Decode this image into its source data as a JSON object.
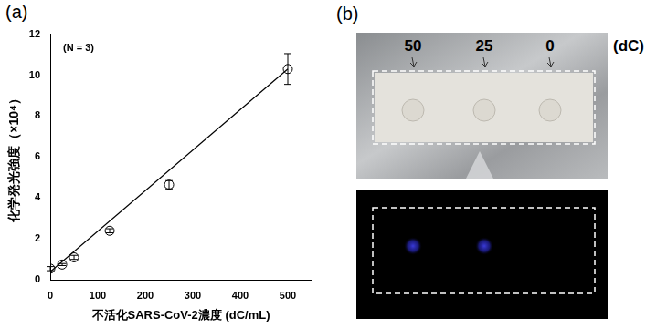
{
  "chart_data": {
    "type": "scatter",
    "panel_label": "(a)",
    "annotation": "(N = 3)",
    "x_label": "不活化SARS-CoV-2濃度 (dC/mL)",
    "y_label": "化学発光強度（×10⁴）",
    "x": [
      0,
      25,
      50,
      125,
      250,
      500
    ],
    "values": [
      0.55,
      0.75,
      1.1,
      2.4,
      4.65,
      10.3
    ],
    "errors": [
      0.1,
      0.05,
      0.1,
      0.1,
      0.2,
      0.75
    ],
    "fit_line": {
      "x": [
        0,
        500
      ],
      "values": [
        0.4,
        10.3
      ]
    },
    "xlim": [
      0,
      550
    ],
    "xticks": [
      0,
      100,
      200,
      300,
      400,
      500
    ],
    "ylim": [
      0,
      12
    ],
    "yticks": [
      0,
      2,
      4,
      6,
      8,
      10,
      12
    ],
    "grid": false,
    "color": "#000000",
    "marker": "circle"
  },
  "image_panel": {
    "panel_label": "(b)",
    "sample_labels": [
      "50",
      "25",
      "0"
    ],
    "unit": "(dC)",
    "emission": [
      true,
      true,
      false
    ]
  }
}
